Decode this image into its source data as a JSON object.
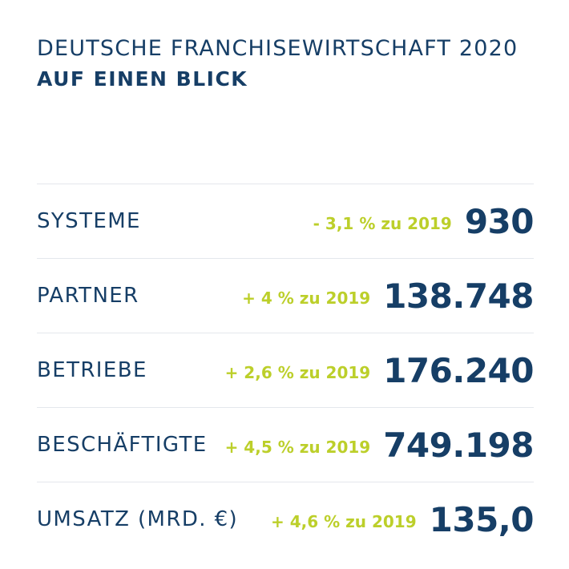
{
  "header": {
    "title": "DEUTSCHE FRANCHISEWIRTSCHAFT 2020",
    "subtitle": "AUF EINEN BLICK"
  },
  "stats": [
    {
      "label": "SYSTEME",
      "change": "- 3,1 % zu 2019",
      "value": "930"
    },
    {
      "label": "PARTNER",
      "change": "+ 4 % zu 2019",
      "value": "138.748"
    },
    {
      "label": "BETRIEBE",
      "change": "+ 2,6 % zu 2019",
      "value": "176.240"
    },
    {
      "label": "BESCHÄFTIGTE",
      "change": "+ 4,5 % zu 2019",
      "value": "749.198"
    },
    {
      "label": "UMSATZ (MRD. €)",
      "change": "+ 4,6 % zu 2019",
      "value": "135,0"
    }
  ],
  "colors": {
    "primary": "#163e66",
    "accent": "#bccf2a",
    "divider": "#e4e7ec",
    "background": "#ffffff"
  }
}
